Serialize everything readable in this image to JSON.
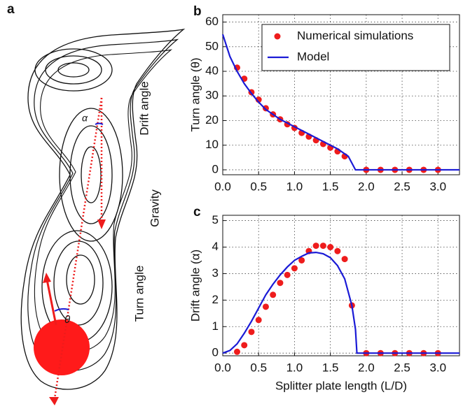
{
  "panel_a": {
    "label": "a",
    "alpha": "α",
    "drift": "Drift angle",
    "gravity": "Gravity",
    "turn": "Turn angle",
    "theta": "θ"
  },
  "chart_data": [
    {
      "type": "scatter",
      "panel_label": "b",
      "ylabel": "Turn angle (θ)",
      "xlim": [
        0,
        3.3
      ],
      "ylim": [
        -2,
        63
      ],
      "xticks": [
        {
          "value": 0,
          "label": "0.0"
        },
        0.5,
        {
          "value": 1,
          "label": "1.0"
        },
        1.5,
        {
          "value": 2,
          "label": "2.0"
        },
        2.5,
        {
          "value": 3,
          "label": "3.0"
        }
      ],
      "yticks": [
        0,
        10,
        20,
        30,
        40,
        50,
        60
      ],
      "grid": true,
      "legend": "upper right",
      "series": [
        {
          "name": "Numerical simulations",
          "kind": "markers",
          "color": "#ee1c1c",
          "x": [
            0.2,
            0.3,
            0.4,
            0.5,
            0.6,
            0.7,
            0.8,
            0.9,
            1.0,
            1.1,
            1.2,
            1.3,
            1.4,
            1.5,
            1.6,
            1.7,
            2.0,
            2.2,
            2.4,
            2.6,
            2.8,
            3.0
          ],
          "values": [
            41.5,
            37,
            31.5,
            28.5,
            25,
            22.5,
            20.5,
            18.5,
            17,
            15,
            13.5,
            12,
            10.5,
            9,
            7.5,
            5.5,
            0,
            0,
            0,
            0,
            0,
            0
          ]
        },
        {
          "name": "Model",
          "kind": "line",
          "color": "#1a1ad6",
          "x": [
            0,
            0.1,
            0.2,
            0.3,
            0.4,
            0.5,
            0.6,
            0.8,
            1.0,
            1.2,
            1.4,
            1.6,
            1.75,
            1.85,
            3.3
          ],
          "values": [
            55,
            46,
            40,
            35,
            31,
            27.5,
            24.5,
            20.5,
            17.5,
            14.5,
            11.5,
            8.5,
            5.5,
            0,
            0
          ]
        }
      ]
    },
    {
      "type": "scatter",
      "panel_label": "c",
      "ylabel": "Drift angle (α)",
      "xlabel": "Splitter plate length (L/D)",
      "xlim": [
        0,
        3.3
      ],
      "ylim": [
        -0.1,
        5.2
      ],
      "xticks": [
        {
          "value": 0,
          "label": "0.0"
        },
        0.5,
        {
          "value": 1,
          "label": "1.0"
        },
        1.5,
        {
          "value": 2,
          "label": "2.0"
        },
        2.5,
        {
          "value": 3,
          "label": "3.0"
        }
      ],
      "yticks": [
        0,
        1,
        2,
        3,
        4,
        5
      ],
      "grid": true,
      "series": [
        {
          "kind": "markers",
          "color": "#ee1c1c",
          "x": [
            0.2,
            0.3,
            0.4,
            0.5,
            0.6,
            0.7,
            0.8,
            0.9,
            1.0,
            1.1,
            1.2,
            1.3,
            1.4,
            1.5,
            1.6,
            1.7,
            1.8,
            2.0,
            2.2,
            2.4,
            2.6,
            2.8,
            3.0
          ],
          "values": [
            0.05,
            0.3,
            0.8,
            1.25,
            1.75,
            2.2,
            2.65,
            2.95,
            3.2,
            3.5,
            3.85,
            4.05,
            4.05,
            4.0,
            3.85,
            3.55,
            1.8,
            0,
            0,
            0,
            0,
            0,
            0
          ]
        },
        {
          "kind": "line",
          "color": "#1a1ad6",
          "x": [
            0,
            0.1,
            0.2,
            0.3,
            0.4,
            0.5,
            0.6,
            0.7,
            0.8,
            0.9,
            1.0,
            1.1,
            1.2,
            1.3,
            1.4,
            1.5,
            1.6,
            1.7,
            1.8,
            1.85,
            1.87,
            3.3
          ],
          "values": [
            0,
            0.1,
            0.35,
            0.75,
            1.2,
            1.7,
            2.2,
            2.6,
            2.95,
            3.25,
            3.5,
            3.65,
            3.78,
            3.8,
            3.75,
            3.6,
            3.3,
            2.8,
            1.8,
            0.9,
            0,
            0
          ]
        }
      ]
    }
  ]
}
